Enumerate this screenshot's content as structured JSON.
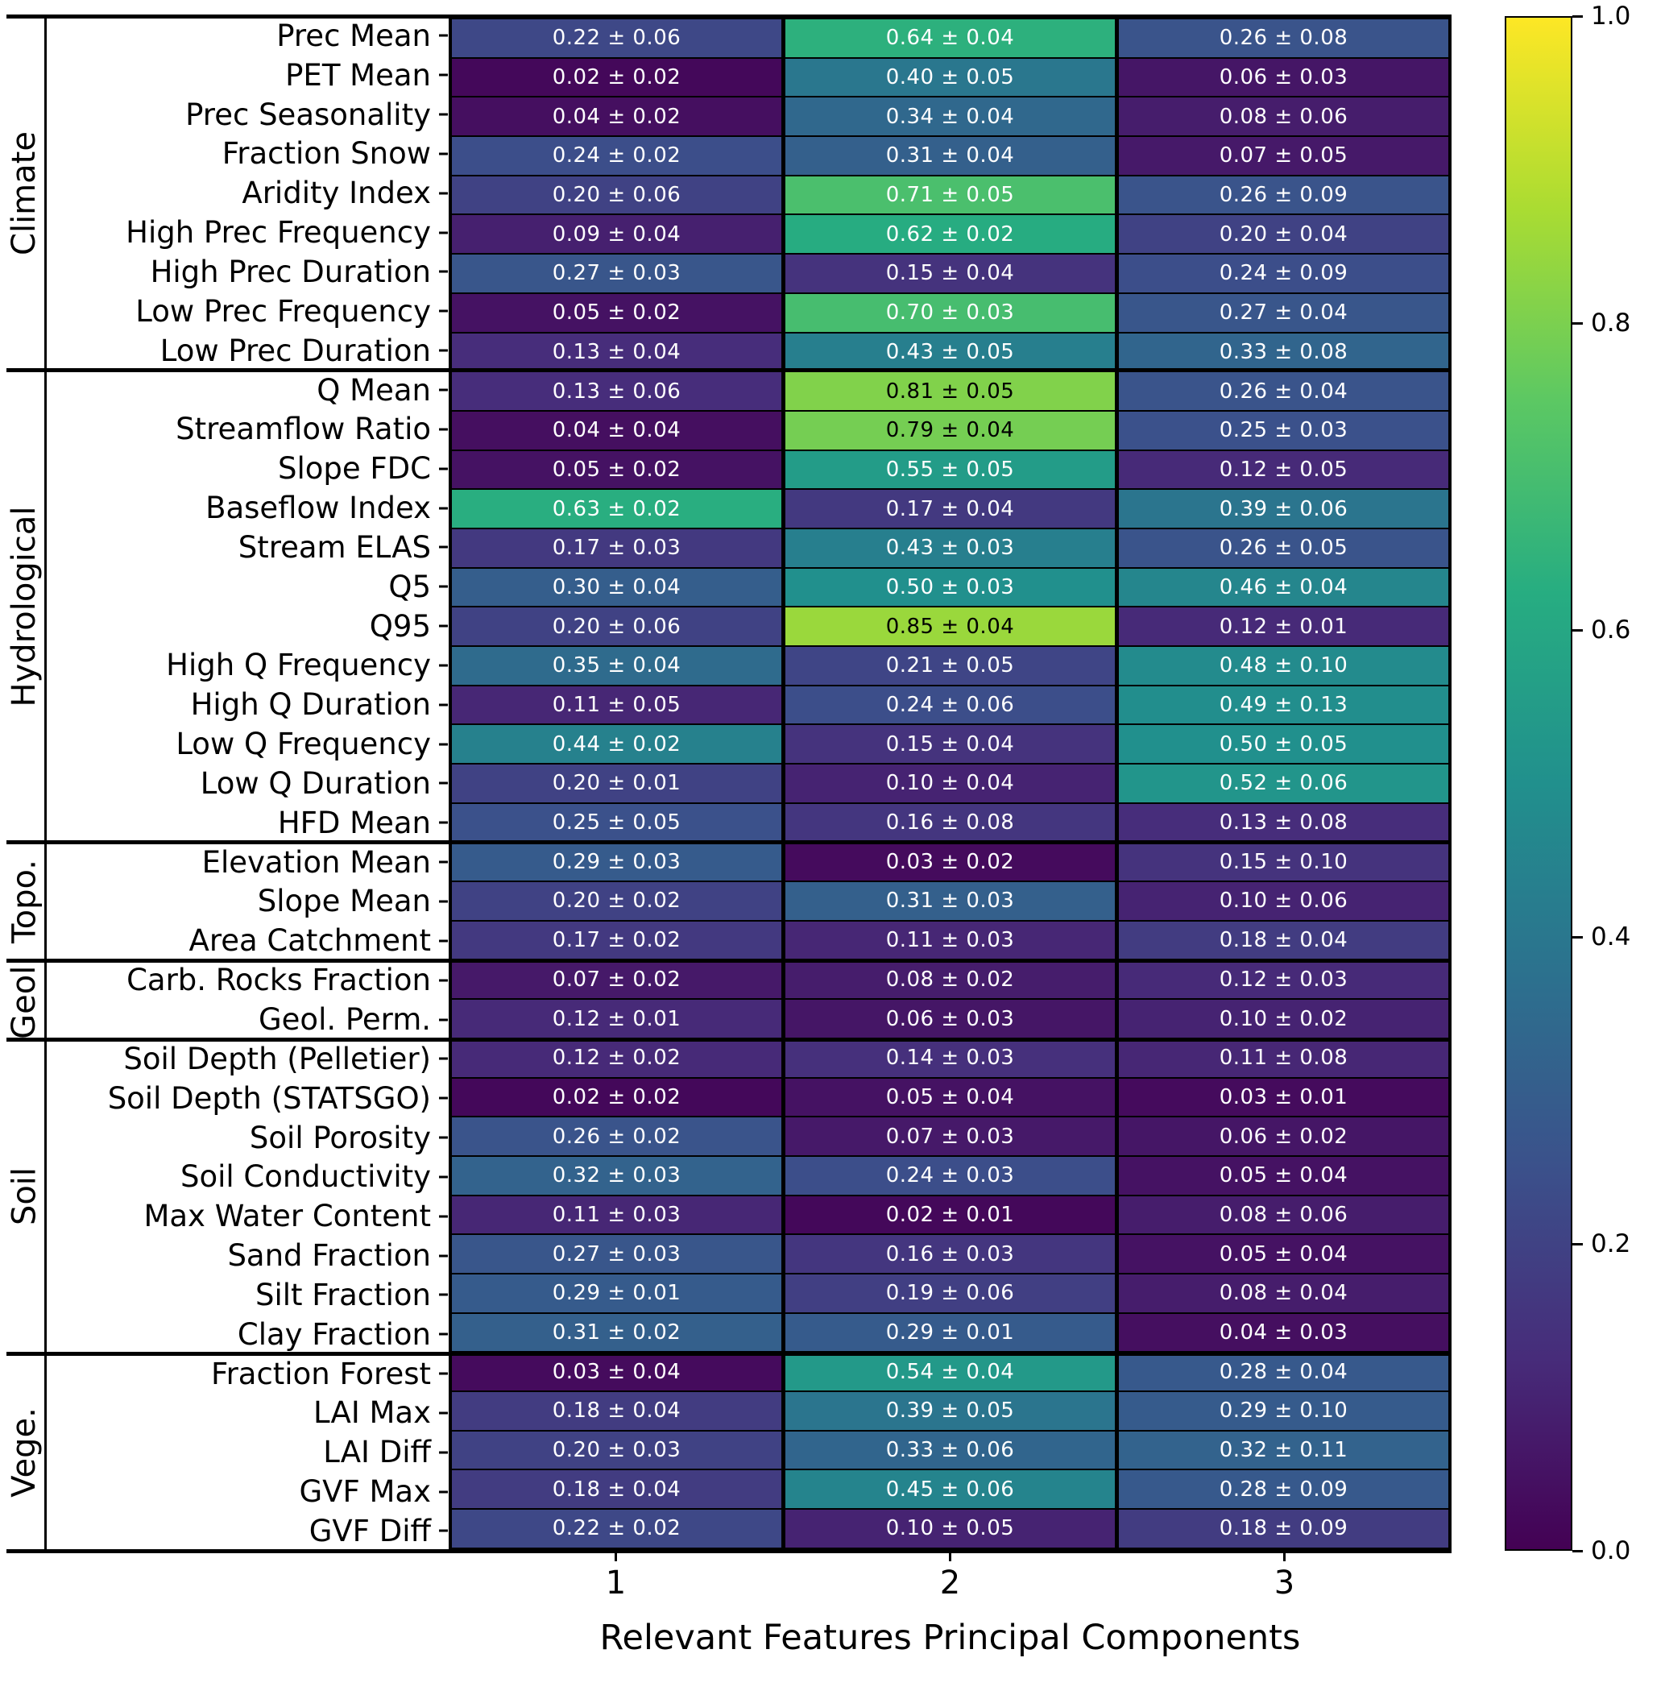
{
  "chart_data": {
    "type": "heatmap",
    "title": "",
    "xlabel": "Relevant Features Principal Components",
    "ylabel": "",
    "colormap": "viridis",
    "value_range": [
      0,
      1
    ],
    "cell_format": "mean ± std",
    "xticks": [
      "1",
      "2",
      "3"
    ],
    "colorbar": {
      "ticks": [
        "0.0",
        "0.2",
        "0.4",
        "0.6",
        "0.8",
        "1.0"
      ]
    },
    "groups": [
      {
        "label": "Climate",
        "rows": [
          {
            "label": "Prec Mean",
            "means": [
              0.22,
              0.64,
              0.26
            ],
            "stds": [
              0.06,
              0.04,
              0.08
            ]
          },
          {
            "label": "PET Mean",
            "means": [
              0.02,
              0.4,
              0.06
            ],
            "stds": [
              0.02,
              0.05,
              0.03
            ]
          },
          {
            "label": "Prec Seasonality",
            "means": [
              0.04,
              0.34,
              0.08
            ],
            "stds": [
              0.02,
              0.04,
              0.06
            ]
          },
          {
            "label": "Fraction Snow",
            "means": [
              0.24,
              0.31,
              0.07
            ],
            "stds": [
              0.02,
              0.04,
              0.05
            ]
          },
          {
            "label": "Aridity Index",
            "means": [
              0.2,
              0.71,
              0.26
            ],
            "stds": [
              0.06,
              0.05,
              0.09
            ]
          },
          {
            "label": "High Prec Frequency",
            "means": [
              0.09,
              0.62,
              0.2
            ],
            "stds": [
              0.04,
              0.02,
              0.04
            ]
          },
          {
            "label": "High Prec Duration",
            "means": [
              0.27,
              0.15,
              0.24
            ],
            "stds": [
              0.03,
              0.04,
              0.09
            ]
          },
          {
            "label": "Low Prec Frequency",
            "means": [
              0.05,
              0.7,
              0.27
            ],
            "stds": [
              0.02,
              0.03,
              0.04
            ]
          },
          {
            "label": "Low Prec Duration",
            "means": [
              0.13,
              0.43,
              0.33
            ],
            "stds": [
              0.04,
              0.05,
              0.08
            ]
          }
        ]
      },
      {
        "label": "Hydrological",
        "rows": [
          {
            "label": "Q Mean",
            "means": [
              0.13,
              0.81,
              0.26
            ],
            "stds": [
              0.06,
              0.05,
              0.04
            ]
          },
          {
            "label": "Streamflow Ratio",
            "means": [
              0.04,
              0.79,
              0.25
            ],
            "stds": [
              0.04,
              0.04,
              0.03
            ]
          },
          {
            "label": "Slope FDC",
            "means": [
              0.05,
              0.55,
              0.12
            ],
            "stds": [
              0.02,
              0.05,
              0.05
            ]
          },
          {
            "label": "Baseflow Index",
            "means": [
              0.63,
              0.17,
              0.39
            ],
            "stds": [
              0.02,
              0.04,
              0.06
            ]
          },
          {
            "label": "Stream ELAS",
            "means": [
              0.17,
              0.43,
              0.26
            ],
            "stds": [
              0.03,
              0.03,
              0.05
            ]
          },
          {
            "label": "Q5",
            "means": [
              0.3,
              0.5,
              0.46
            ],
            "stds": [
              0.04,
              0.03,
              0.04
            ]
          },
          {
            "label": "Q95",
            "means": [
              0.2,
              0.85,
              0.12
            ],
            "stds": [
              0.06,
              0.04,
              0.01
            ]
          },
          {
            "label": "High Q Frequency",
            "means": [
              0.35,
              0.21,
              0.48
            ],
            "stds": [
              0.04,
              0.05,
              0.1
            ]
          },
          {
            "label": "High Q Duration",
            "means": [
              0.11,
              0.24,
              0.49
            ],
            "stds": [
              0.05,
              0.06,
              0.13
            ]
          },
          {
            "label": "Low Q Frequency",
            "means": [
              0.44,
              0.15,
              0.5
            ],
            "stds": [
              0.02,
              0.04,
              0.05
            ]
          },
          {
            "label": "Low Q Duration",
            "means": [
              0.2,
              0.1,
              0.52
            ],
            "stds": [
              0.01,
              0.04,
              0.06
            ]
          },
          {
            "label": "HFD Mean",
            "means": [
              0.25,
              0.16,
              0.13
            ],
            "stds": [
              0.05,
              0.08,
              0.08
            ]
          }
        ]
      },
      {
        "label": "Topo.",
        "rows": [
          {
            "label": "Elevation Mean",
            "means": [
              0.29,
              0.03,
              0.15
            ],
            "stds": [
              0.03,
              0.02,
              0.1
            ]
          },
          {
            "label": "Slope Mean",
            "means": [
              0.2,
              0.31,
              0.1
            ],
            "stds": [
              0.02,
              0.03,
              0.06
            ]
          },
          {
            "label": "Area Catchment",
            "means": [
              0.17,
              0.11,
              0.18
            ],
            "stds": [
              0.02,
              0.03,
              0.04
            ]
          }
        ]
      },
      {
        "label": "Geol.",
        "rows": [
          {
            "label": "Carb. Rocks Fraction",
            "means": [
              0.07,
              0.08,
              0.12
            ],
            "stds": [
              0.02,
              0.02,
              0.03
            ]
          },
          {
            "label": "Geol. Perm.",
            "means": [
              0.12,
              0.06,
              0.1
            ],
            "stds": [
              0.01,
              0.03,
              0.02
            ]
          }
        ]
      },
      {
        "label": "Soil",
        "rows": [
          {
            "label": "Soil Depth (Pelletier)",
            "means": [
              0.12,
              0.14,
              0.11
            ],
            "stds": [
              0.02,
              0.03,
              0.08
            ]
          },
          {
            "label": "Soil Depth (STATSGO)",
            "means": [
              0.02,
              0.05,
              0.03
            ],
            "stds": [
              0.02,
              0.04,
              0.01
            ]
          },
          {
            "label": "Soil Porosity",
            "means": [
              0.26,
              0.07,
              0.06
            ],
            "stds": [
              0.02,
              0.03,
              0.02
            ]
          },
          {
            "label": "Soil Conductivity",
            "means": [
              0.32,
              0.24,
              0.05
            ],
            "stds": [
              0.03,
              0.03,
              0.04
            ]
          },
          {
            "label": "Max Water Content",
            "means": [
              0.11,
              0.02,
              0.08
            ],
            "stds": [
              0.03,
              0.01,
              0.06
            ]
          },
          {
            "label": "Sand Fraction",
            "means": [
              0.27,
              0.16,
              0.05
            ],
            "stds": [
              0.03,
              0.03,
              0.04
            ]
          },
          {
            "label": "Silt Fraction",
            "means": [
              0.29,
              0.19,
              0.08
            ],
            "stds": [
              0.01,
              0.06,
              0.04
            ]
          },
          {
            "label": "Clay Fraction",
            "means": [
              0.31,
              0.29,
              0.04
            ],
            "stds": [
              0.02,
              0.01,
              0.03
            ]
          }
        ]
      },
      {
        "label": "Vege.",
        "rows": [
          {
            "label": "Fraction Forest",
            "means": [
              0.03,
              0.54,
              0.28
            ],
            "stds": [
              0.04,
              0.04,
              0.04
            ]
          },
          {
            "label": "LAI Max",
            "means": [
              0.18,
              0.39,
              0.29
            ],
            "stds": [
              0.04,
              0.05,
              0.1
            ]
          },
          {
            "label": "LAI Diff",
            "means": [
              0.2,
              0.33,
              0.32
            ],
            "stds": [
              0.03,
              0.06,
              0.11
            ]
          },
          {
            "label": "GVF Max",
            "means": [
              0.18,
              0.45,
              0.28
            ],
            "stds": [
              0.04,
              0.06,
              0.09
            ]
          },
          {
            "label": "GVF Diff",
            "means": [
              0.22,
              0.1,
              0.18
            ],
            "stds": [
              0.02,
              0.05,
              0.09
            ]
          }
        ]
      }
    ]
  }
}
